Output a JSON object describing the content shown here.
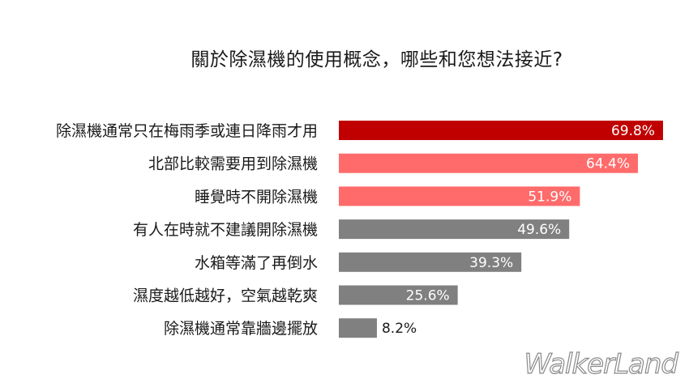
{
  "chart_data": {
    "type": "bar",
    "orientation": "horizontal",
    "title": "關於除濕機的使用概念，哪些和您想法接近?",
    "categories": [
      "除濕機通常只在梅雨季或連日降雨才用",
      "北部比較需要用到除濕機",
      "睡覺時不開除濕機",
      "有人在時就不建議開除濕機",
      "水箱等滿了再倒水",
      "濕度越低越好，空氣越乾爽",
      "除濕機通常靠牆邊擺放"
    ],
    "values": [
      69.8,
      64.4,
      51.9,
      49.6,
      39.3,
      25.6,
      8.2
    ],
    "value_labels": [
      "69.8%",
      "64.4%",
      "51.9%",
      "49.6%",
      "39.3%",
      "25.6%",
      "8.2%"
    ],
    "bar_colors": [
      "#c00000",
      "#ff6b6b",
      "#ff6b6b",
      "#808080",
      "#808080",
      "#808080",
      "#808080"
    ],
    "label_inside_color": "#ffffff",
    "label_outside_color": "#1a1a1a",
    "xlim": [
      0,
      100
    ],
    "grid": false,
    "legend": "none"
  },
  "watermark": "WalkerLand"
}
